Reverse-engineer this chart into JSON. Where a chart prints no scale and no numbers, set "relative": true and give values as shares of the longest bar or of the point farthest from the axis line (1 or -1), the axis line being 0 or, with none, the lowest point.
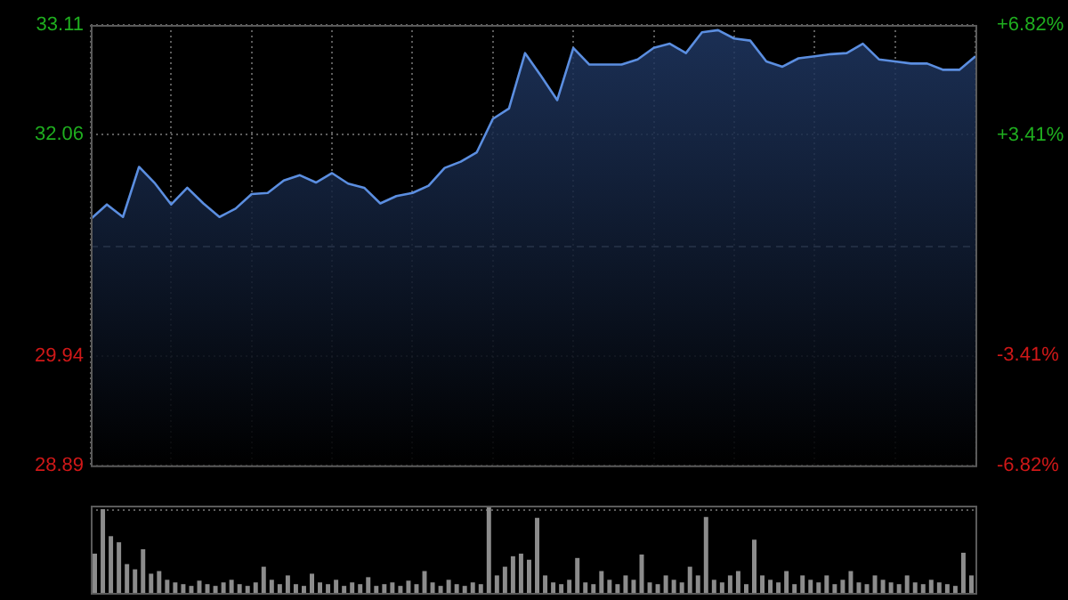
{
  "chart_data": [
    {
      "type": "area",
      "categories": [
        null,
        null,
        null,
        null,
        null,
        null,
        null,
        null,
        null,
        null,
        null,
        null,
        null,
        null,
        null,
        null,
        null,
        null,
        null,
        null,
        null,
        null,
        null,
        null,
        null,
        null,
        null,
        null,
        null,
        null,
        null,
        null,
        null,
        null,
        null,
        null,
        null,
        null,
        null,
        null,
        null,
        null,
        null,
        null,
        null,
        null,
        null,
        null,
        null,
        null,
        null,
        null,
        null,
        null,
        null,
        null
      ],
      "values": [
        31.25,
        31.39,
        31.27,
        31.75,
        31.59,
        31.39,
        31.55,
        31.4,
        31.27,
        31.35,
        31.49,
        31.5,
        31.62,
        31.67,
        31.6,
        31.69,
        31.59,
        31.55,
        31.4,
        31.47,
        31.5,
        31.57,
        31.74,
        31.8,
        31.89,
        32.21,
        32.31,
        32.84,
        32.62,
        32.39,
        32.89,
        32.73,
        32.73,
        32.73,
        32.78,
        32.89,
        32.93,
        32.84,
        33.04,
        33.06,
        32.98,
        32.96,
        32.76,
        32.71,
        32.79,
        32.81,
        32.83,
        32.84,
        32.93,
        32.78,
        32.76,
        32.74,
        32.74,
        32.68,
        32.68,
        32.81
      ],
      "color": "#5b8ee0",
      "ylim": [
        28.89,
        33.11
      ],
      "yticks": [
        28.89,
        29.94,
        32.06,
        33.11
      ],
      "y2lim": [
        -6.82,
        6.82
      ],
      "y2ticks": [
        {
          "value": -6.82,
          "label": "-6.82%"
        },
        {
          "value": -3.41,
          "label": "-3.41%"
        },
        {
          "value": 3.41,
          "label": "+3.41%"
        },
        {
          "value": 6.82,
          "label": "+6.82%"
        }
      ],
      "ref_lines": [
        {
          "axis": "y",
          "value": 31.0,
          "color": "#9aa4b0",
          "line_style": "dashed"
        }
      ],
      "grid": true
    },
    {
      "type": "bar",
      "relative": true,
      "color": "#8c8c8c",
      "grid": true,
      "categories": [
        null,
        null,
        null,
        null,
        null,
        null,
        null,
        null,
        null,
        null,
        null,
        null,
        null,
        null,
        null,
        null,
        null,
        null,
        null,
        null,
        null,
        null,
        null,
        null,
        null,
        null,
        null,
        null,
        null,
        null,
        null,
        null,
        null,
        null,
        null,
        null,
        null,
        null,
        null,
        null,
        null,
        null,
        null,
        null,
        null,
        null,
        null,
        null,
        null,
        null,
        null,
        null,
        null,
        null,
        null,
        null,
        null,
        null,
        null,
        null,
        null,
        null,
        null,
        null,
        null,
        null,
        null,
        null,
        null,
        null,
        null,
        null,
        null,
        null,
        null,
        null,
        null,
        null,
        null,
        null,
        null,
        null,
        null,
        null,
        null,
        null,
        null,
        null,
        null,
        null,
        null,
        null,
        null,
        null,
        null,
        null,
        null,
        null,
        null,
        null,
        null,
        null,
        null,
        null,
        null,
        null,
        null,
        null,
        null,
        null
      ],
      "values": [
        0.45,
        0.96,
        0.65,
        0.58,
        0.33,
        0.27,
        0.5,
        0.22,
        0.25,
        0.15,
        0.12,
        0.1,
        0.08,
        0.14,
        0.1,
        0.08,
        0.12,
        0.15,
        0.1,
        0.08,
        0.12,
        0.3,
        0.15,
        0.1,
        0.2,
        0.1,
        0.08,
        0.22,
        0.12,
        0.1,
        0.15,
        0.08,
        0.12,
        0.1,
        0.18,
        0.08,
        0.1,
        0.12,
        0.08,
        0.14,
        0.1,
        0.25,
        0.12,
        0.08,
        0.15,
        0.1,
        0.08,
        0.12,
        0.1,
        1.0,
        0.2,
        0.3,
        0.42,
        0.45,
        0.38,
        0.86,
        0.2,
        0.12,
        0.1,
        0.15,
        0.4,
        0.12,
        0.1,
        0.25,
        0.15,
        0.1,
        0.2,
        0.15,
        0.44,
        0.12,
        0.1,
        0.2,
        0.15,
        0.12,
        0.3,
        0.2,
        0.87,
        0.15,
        0.12,
        0.2,
        0.25,
        0.1,
        0.61,
        0.2,
        0.15,
        0.12,
        0.25,
        0.1,
        0.2,
        0.15,
        0.12,
        0.2,
        0.1,
        0.15,
        0.25,
        0.12,
        0.1,
        0.2,
        0.15,
        0.12,
        0.1,
        0.2,
        0.12,
        0.1,
        0.15,
        0.12,
        0.1,
        0.08,
        0.46,
        0.2
      ]
    }
  ]
}
